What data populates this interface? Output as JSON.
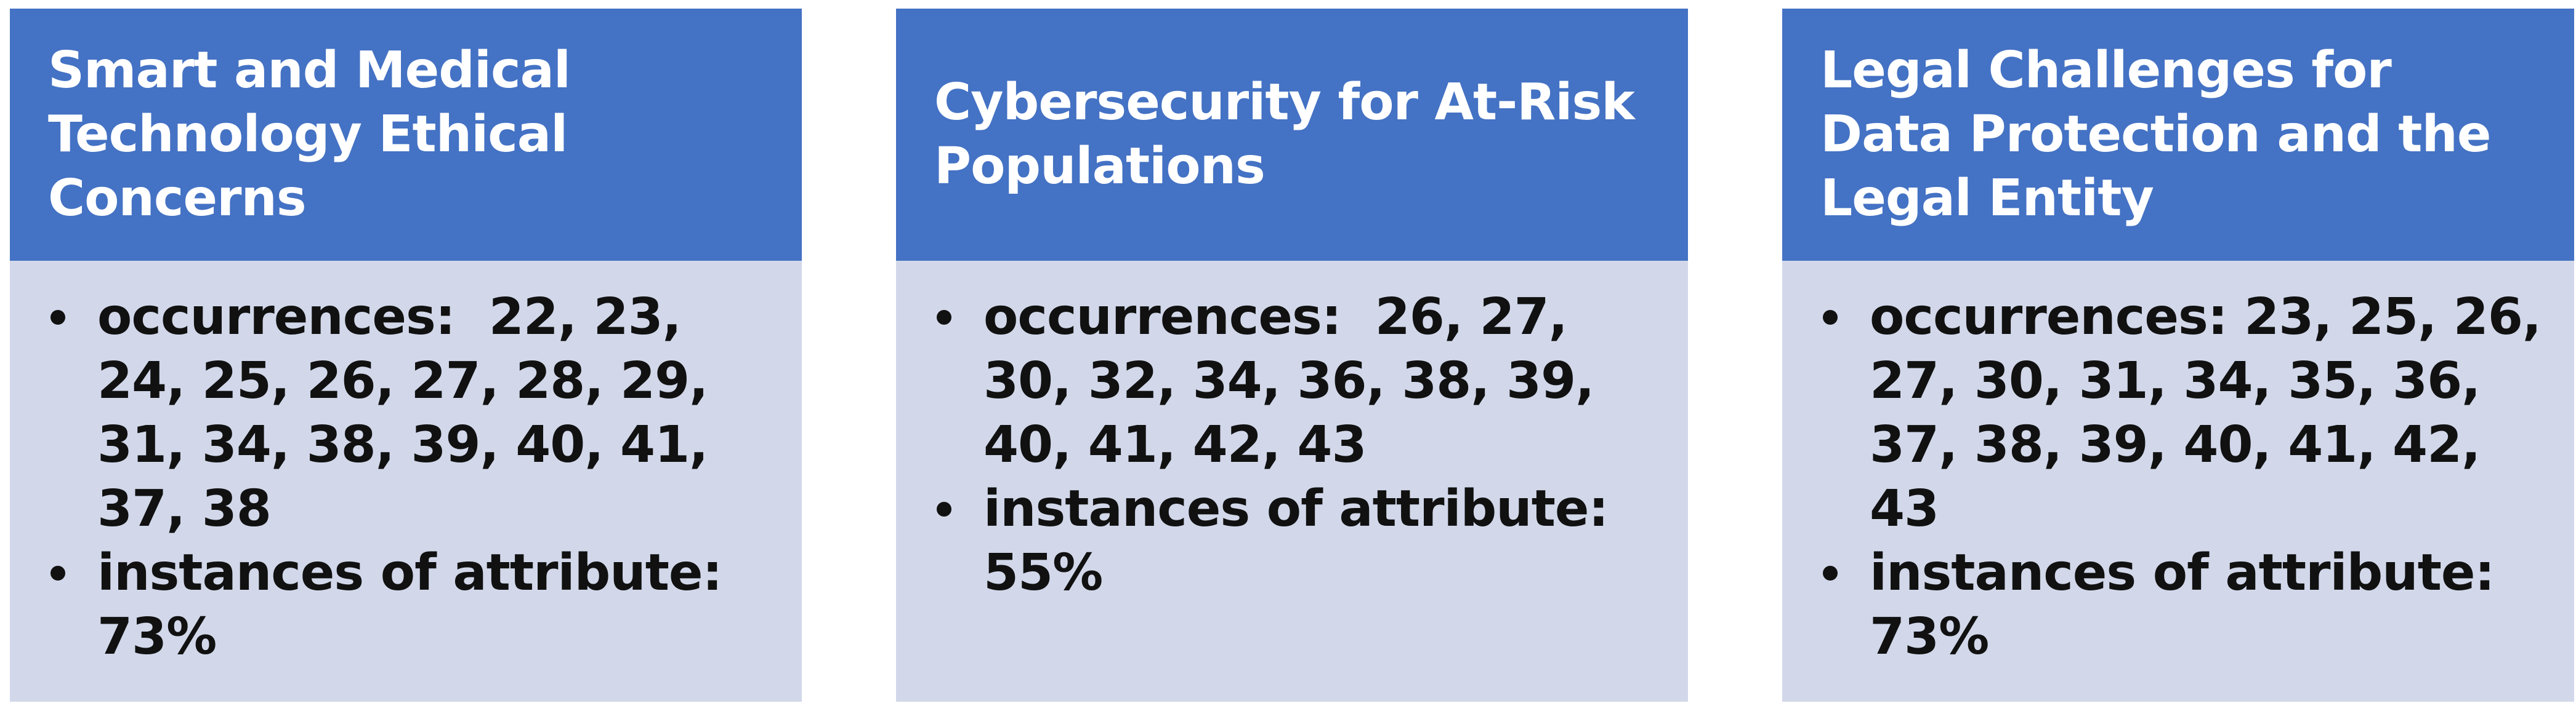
{
  "cards": [
    {
      "title": "Smart and Medical Technology Ethical Concerns",
      "occurrences_label": "occurrences:  ",
      "occurrences": "22, 23, 24, 25, 26, 27, 28, 29, 31, 34, 38, 39, 40, 41, 37, 38",
      "instances_label": "instances of attribute: ",
      "instances": "73%"
    },
    {
      "title": "Cybersecurity for At-Risk Populations",
      "occurrences_label": "occurrences:  ",
      "occurrences": "26, 27, 30, 32, 34, 36, 38, 39, 40, 41, 42, 43",
      "instances_label": "instances of attribute: ",
      "instances": "55%"
    },
    {
      "title": "Legal Challenges for Data Protection and the Legal Entity",
      "occurrences_label": "occurrences: ",
      "occurrences": "23, 25, 26, 27, 30, 31, 34, 35, 36, 37, 38, 39, 40, 41, 42, 43",
      "instances_label": "instances of attribute: ",
      "instances": "73%"
    }
  ],
  "colors": {
    "header": "#4472c4",
    "body": "#d2d8ea",
    "title_text": "#ffffff",
    "body_text": "#111111"
  },
  "icons": {
    "bullet": "bullet-dot-icon"
  }
}
